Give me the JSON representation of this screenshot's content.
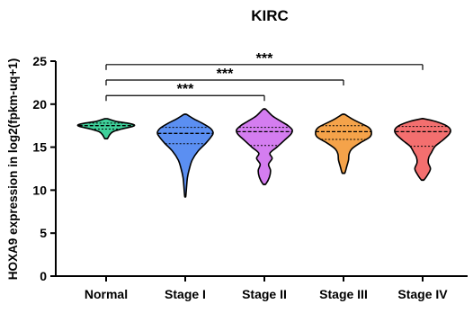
{
  "chart_data": {
    "type": "violin",
    "title": "KIRC",
    "xlabel": "",
    "ylabel": "HOXA9 expression in log2(fpkm-uq+1)",
    "ylim": [
      0,
      25
    ],
    "yticks": [
      0,
      5,
      10,
      15,
      20,
      25
    ],
    "grid": false,
    "categories": [
      "Normal",
      "Stage I",
      "Stage II",
      "Stage III",
      "Stage IV"
    ],
    "series": [
      {
        "category": "Normal",
        "color": "#3fd09a",
        "min": 16.0,
        "max": 18.3,
        "median": 17.5,
        "q1": 17.1,
        "q3": 17.8,
        "profile": [
          [
            16.0,
            0.05
          ],
          [
            16.4,
            0.12
          ],
          [
            16.8,
            0.25
          ],
          [
            17.1,
            0.55
          ],
          [
            17.4,
            0.95
          ],
          [
            17.6,
            1.0
          ],
          [
            17.8,
            0.75
          ],
          [
            18.0,
            0.35
          ],
          [
            18.3,
            0.05
          ]
        ]
      },
      {
        "category": "Stage I",
        "color": "#5b8ff2",
        "min": 9.3,
        "max": 18.8,
        "median": 16.6,
        "q1": 15.4,
        "q3": 17.3,
        "profile": [
          [
            9.3,
            0.02
          ],
          [
            10.5,
            0.05
          ],
          [
            11.5,
            0.08
          ],
          [
            12.5,
            0.15
          ],
          [
            13.5,
            0.25
          ],
          [
            14.5,
            0.45
          ],
          [
            15.5,
            0.75
          ],
          [
            16.3,
            0.95
          ],
          [
            16.7,
            1.0
          ],
          [
            17.2,
            0.9
          ],
          [
            17.8,
            0.6
          ],
          [
            18.3,
            0.3
          ],
          [
            18.8,
            0.05
          ]
        ]
      },
      {
        "category": "Stage II",
        "color": "#d47df0",
        "min": 10.7,
        "max": 19.4,
        "median": 16.8,
        "q1": 15.2,
        "q3": 17.3,
        "profile": [
          [
            10.7,
            0.05
          ],
          [
            11.5,
            0.18
          ],
          [
            12.3,
            0.22
          ],
          [
            13.0,
            0.15
          ],
          [
            13.7,
            0.28
          ],
          [
            14.3,
            0.2
          ],
          [
            15.0,
            0.45
          ],
          [
            15.8,
            0.72
          ],
          [
            16.5,
            0.95
          ],
          [
            17.0,
            1.0
          ],
          [
            17.5,
            0.85
          ],
          [
            18.0,
            0.6
          ],
          [
            18.6,
            0.3
          ],
          [
            19.4,
            0.05
          ]
        ]
      },
      {
        "category": "Stage III",
        "color": "#f5a34a",
        "min": 12.0,
        "max": 18.8,
        "median": 16.8,
        "q1": 15.9,
        "q3": 17.5,
        "profile": [
          [
            12.0,
            0.05
          ],
          [
            12.8,
            0.12
          ],
          [
            13.5,
            0.18
          ],
          [
            14.2,
            0.2
          ],
          [
            14.8,
            0.3
          ],
          [
            15.5,
            0.6
          ],
          [
            16.2,
            0.95
          ],
          [
            16.8,
            1.0
          ],
          [
            17.3,
            0.9
          ],
          [
            17.8,
            0.6
          ],
          [
            18.3,
            0.3
          ],
          [
            18.8,
            0.05
          ]
        ]
      },
      {
        "category": "Stage IV",
        "color": "#f36f6f",
        "min": 11.2,
        "max": 18.3,
        "median": 16.8,
        "q1": 15.1,
        "q3": 17.4,
        "profile": [
          [
            11.2,
            0.05
          ],
          [
            11.9,
            0.2
          ],
          [
            12.5,
            0.28
          ],
          [
            13.2,
            0.2
          ],
          [
            13.8,
            0.22
          ],
          [
            14.4,
            0.32
          ],
          [
            15.1,
            0.45
          ],
          [
            15.8,
            0.72
          ],
          [
            16.5,
            0.95
          ],
          [
            17.0,
            1.0
          ],
          [
            17.5,
            0.85
          ],
          [
            18.0,
            0.45
          ],
          [
            18.3,
            0.05
          ]
        ]
      }
    ],
    "comparisons": [
      {
        "from": "Normal",
        "to": "Stage II",
        "y": 21.0,
        "label": "***"
      },
      {
        "from": "Normal",
        "to": "Stage III",
        "y": 22.8,
        "label": "***"
      },
      {
        "from": "Normal",
        "to": "Stage IV",
        "y": 24.6,
        "label": "***"
      }
    ]
  }
}
